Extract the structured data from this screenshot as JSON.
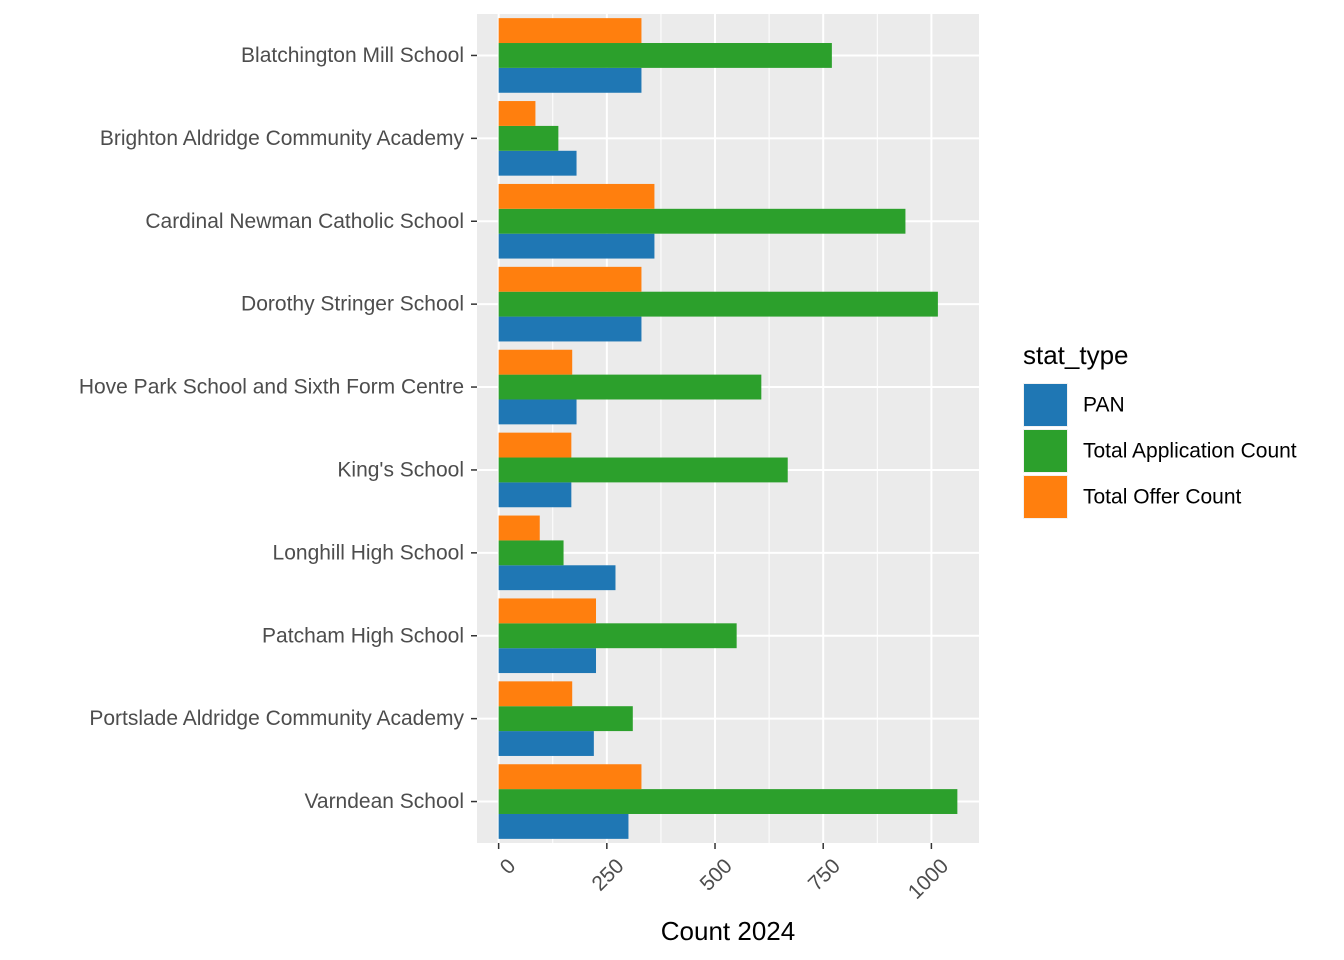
{
  "chart_data": {
    "type": "bar",
    "orientation": "horizontal",
    "categories": [
      "Blatchington Mill School",
      "Brighton Aldridge Community Academy",
      "Cardinal Newman Catholic School",
      "Dorothy Stringer School",
      "Hove Park School and Sixth Form Centre",
      "King's School",
      "Longhill High School",
      "Patcham High School",
      "Portslade Aldridge Community Academy",
      "Varndean School"
    ],
    "series": [
      {
        "name": "PAN",
        "color": "#1f77b4",
        "values": [
          330,
          180,
          360,
          330,
          180,
          168,
          270,
          225,
          220,
          300
        ]
      },
      {
        "name": "Total Application Count",
        "color": "#2ca02c",
        "values": [
          770,
          138,
          940,
          1015,
          607,
          668,
          150,
          550,
          310,
          1060
        ]
      },
      {
        "name": "Total Offer Count",
        "color": "#ff7f0e",
        "values": [
          330,
          85,
          360,
          330,
          170,
          168,
          95,
          225,
          170,
          330
        ]
      }
    ],
    "xlabel": "Count 2024",
    "ylabel": "",
    "xlim": [
      -50,
      1110
    ],
    "x_ticks": [
      "0",
      "250",
      "500",
      "750",
      "1000"
    ],
    "x_tick_values": [
      0,
      250,
      500,
      750,
      1000
    ],
    "grid": true,
    "legend": {
      "title": "stat_type",
      "position": "right"
    }
  }
}
